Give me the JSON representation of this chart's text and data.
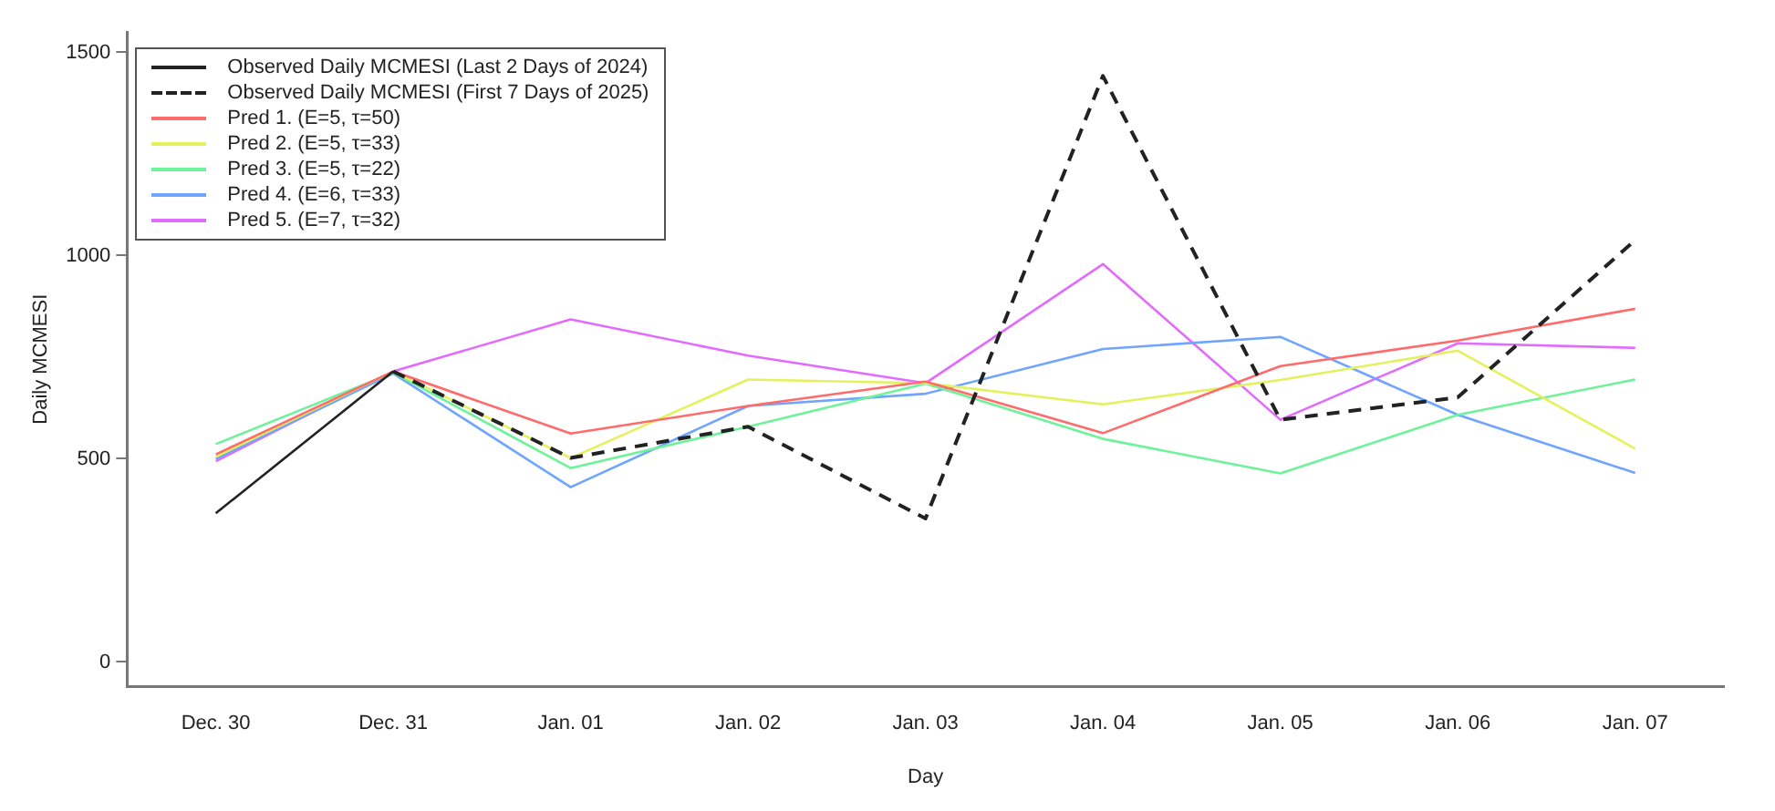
{
  "chart_data": {
    "type": "line",
    "xlabel": "Day",
    "ylabel": "Daily MCMESI",
    "categories": [
      "Dec. 30",
      "Dec. 31",
      "Jan. 01",
      "Jan. 02",
      "Jan. 03",
      "Jan. 04",
      "Jan. 05",
      "Jan. 06",
      "Jan. 07"
    ],
    "ylim": [
      -60,
      1550
    ],
    "yticks": [
      0,
      500,
      1000,
      1500
    ],
    "grid": false,
    "legend": "top left",
    "marker": "none",
    "series": [
      {
        "name": "Observed Daily MCMESI (Last 2 Days of 2024)",
        "color": "#222222",
        "line_style": "solid",
        "values": [
          366,
          715,
          null,
          null,
          null,
          null,
          null,
          null,
          null
        ]
      },
      {
        "name": "Observed Daily MCMESI (First 7 Days of 2025)",
        "color": "#222222",
        "line_style": "dashed",
        "values": [
          null,
          715,
          502,
          579,
          353,
          1442,
          596,
          651,
          1038
        ]
      },
      {
        "name": "Pred 1. (E=5, τ=50)",
        "color": "#ff6b6b",
        "line_style": "solid",
        "values": [
          511,
          715,
          562,
          630,
          690,
          563,
          728,
          791,
          869
        ]
      },
      {
        "name": "Pred 2. (E=5, τ=33)",
        "color": "#e3f25c",
        "line_style": "solid",
        "values": [
          505,
          715,
          502,
          695,
          686,
          634,
          694,
          766,
          525
        ]
      },
      {
        "name": "Pred 3. (E=5, τ=22)",
        "color": "#6ef29a",
        "line_style": "solid",
        "values": [
          536,
          712,
          477,
          579,
          685,
          549,
          464,
          608,
          695
        ]
      },
      {
        "name": "Pred 4. (E=6, τ=33)",
        "color": "#6fa4ff",
        "line_style": "solid",
        "values": [
          500,
          710,
          430,
          630,
          660,
          770,
          800,
          608,
          465
        ]
      },
      {
        "name": "Pred 5. (E=7, τ=32)",
        "color": "#e26bff",
        "line_style": "solid",
        "values": [
          494,
          715,
          843,
          754,
          686,
          979,
          596,
          784,
          773
        ]
      }
    ]
  }
}
